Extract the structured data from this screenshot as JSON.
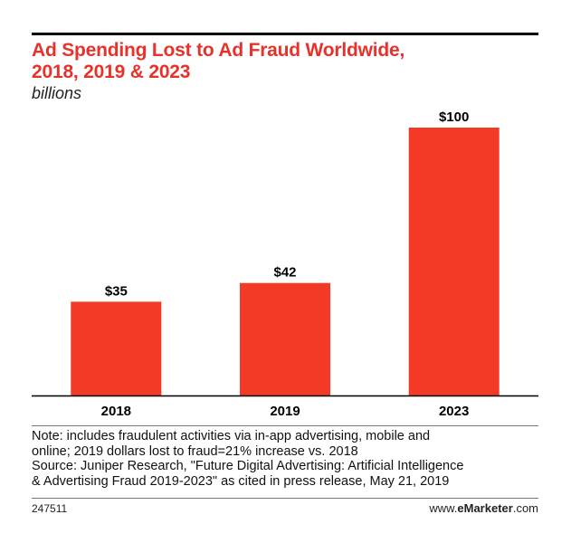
{
  "header": {
    "title_line1": "Ad Spending Lost to Ad Fraud Worldwide,",
    "title_line2": "2018, 2019 & 2023",
    "subtitle": "billions"
  },
  "chart_data": {
    "type": "bar",
    "title": "Ad Spending Lost to Ad Fraud Worldwide, 2018, 2019 & 2023",
    "subtitle": "billions",
    "categories": [
      "2018",
      "2019",
      "2023"
    ],
    "values": [
      35,
      42,
      100
    ],
    "value_labels": [
      "$35",
      "$42",
      "$100"
    ],
    "xlabel": "",
    "ylabel": "",
    "ylim": [
      0,
      100
    ],
    "grid": false,
    "bar_color": "#f23a26"
  },
  "footer": {
    "note_line1": "Note: includes fraudulent activities via in-app advertising, mobile and",
    "note_line2": "online; 2019 dollars lost to fraud=21% increase vs. 2018",
    "source_line1": "Source: Juniper Research, \"Future Digital Advertising: Artificial Intelligence",
    "source_line2": "& Advertising Fraud 2019-2023\" as cited in press release, May 21, 2019",
    "chart_id": "247511",
    "brand_prefix": "www.",
    "brand_name": "eMarketer",
    "brand_suffix": ".com"
  },
  "colors": {
    "title": "#e8312a",
    "bar": "#f23a26",
    "axis": "#000000"
  }
}
